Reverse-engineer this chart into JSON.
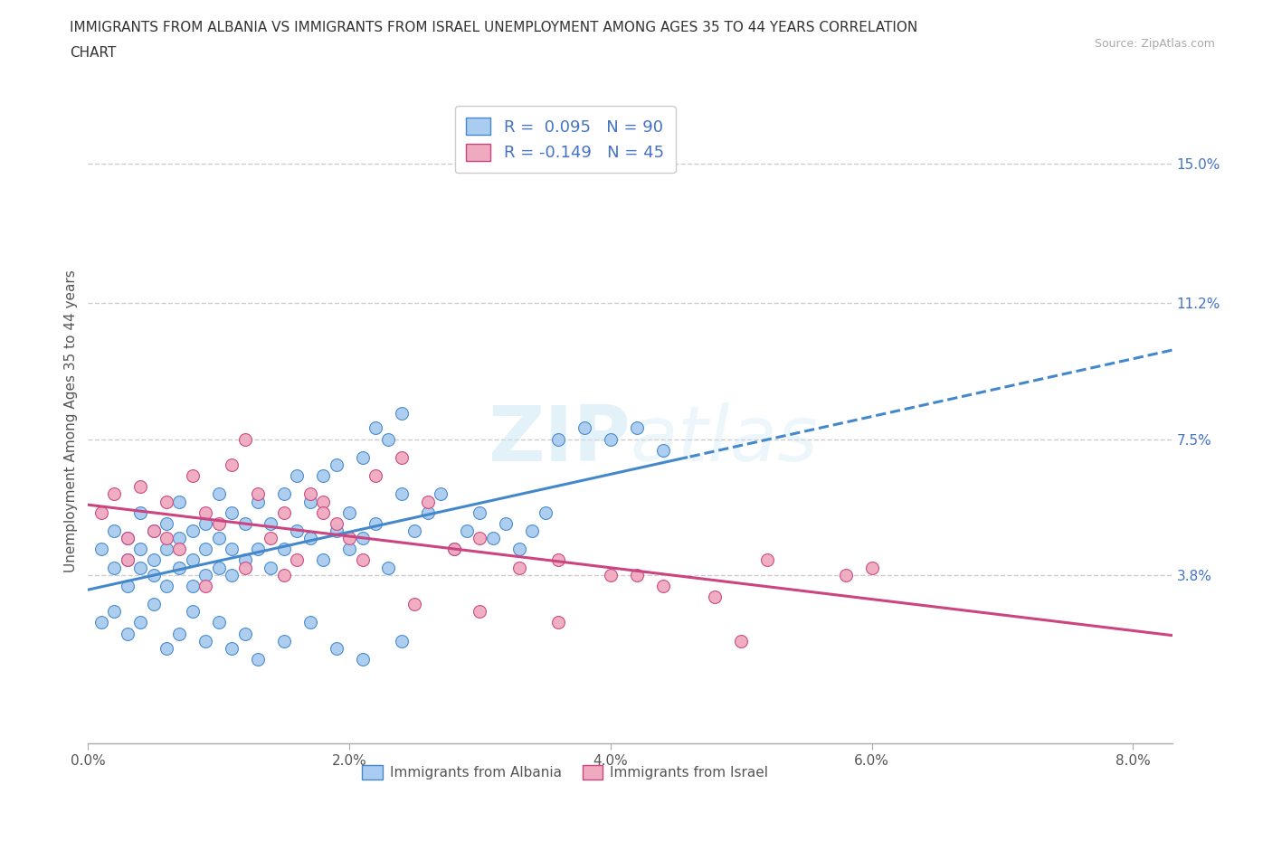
{
  "title_line1": "IMMIGRANTS FROM ALBANIA VS IMMIGRANTS FROM ISRAEL UNEMPLOYMENT AMONG AGES 35 TO 44 YEARS CORRELATION",
  "title_line2": "CHART",
  "source": "Source: ZipAtlas.com",
  "ylabel": "Unemployment Among Ages 35 to 44 years",
  "xlim_min": 0.0,
  "xlim_max": 0.083,
  "ylim_min": -0.008,
  "ylim_max": 0.168,
  "xtick_labels": [
    "0.0%",
    "2.0%",
    "4.0%",
    "6.0%",
    "8.0%"
  ],
  "xtick_values": [
    0.0,
    0.02,
    0.04,
    0.06,
    0.08
  ],
  "ytick_labels_right": [
    "3.8%",
    "7.5%",
    "11.2%",
    "15.0%"
  ],
  "ytick_values_right": [
    0.038,
    0.075,
    0.112,
    0.15
  ],
  "albania_color": "#aaccf0",
  "israel_color": "#f0aac0",
  "albania_edge_color": "#4488cc",
  "israel_edge_color": "#cc4480",
  "albania_trend_color": "#4488cc",
  "israel_trend_color": "#cc4480",
  "legend_label_albania": "Immigrants from Albania",
  "legend_label_israel": "Immigrants from Israel",
  "albania_R": 0.095,
  "albania_N": 90,
  "israel_R": -0.149,
  "israel_N": 45,
  "albania_x": [
    0.001,
    0.002,
    0.002,
    0.003,
    0.003,
    0.003,
    0.004,
    0.004,
    0.004,
    0.005,
    0.005,
    0.005,
    0.006,
    0.006,
    0.006,
    0.007,
    0.007,
    0.007,
    0.008,
    0.008,
    0.008,
    0.009,
    0.009,
    0.009,
    0.01,
    0.01,
    0.01,
    0.011,
    0.011,
    0.011,
    0.012,
    0.012,
    0.013,
    0.013,
    0.014,
    0.014,
    0.015,
    0.015,
    0.016,
    0.016,
    0.017,
    0.017,
    0.018,
    0.018,
    0.019,
    0.019,
    0.02,
    0.02,
    0.021,
    0.021,
    0.022,
    0.022,
    0.023,
    0.023,
    0.024,
    0.024,
    0.025,
    0.026,
    0.027,
    0.028,
    0.029,
    0.03,
    0.031,
    0.032,
    0.033,
    0.034,
    0.035,
    0.036,
    0.038,
    0.04,
    0.042,
    0.044,
    0.001,
    0.002,
    0.003,
    0.004,
    0.005,
    0.006,
    0.007,
    0.008,
    0.009,
    0.01,
    0.011,
    0.012,
    0.013,
    0.015,
    0.017,
    0.019,
    0.021,
    0.024
  ],
  "albania_y": [
    0.045,
    0.05,
    0.04,
    0.042,
    0.048,
    0.035,
    0.04,
    0.045,
    0.055,
    0.042,
    0.05,
    0.038,
    0.045,
    0.052,
    0.035,
    0.04,
    0.048,
    0.058,
    0.042,
    0.05,
    0.035,
    0.045,
    0.052,
    0.038,
    0.04,
    0.048,
    0.06,
    0.045,
    0.055,
    0.038,
    0.042,
    0.052,
    0.045,
    0.058,
    0.04,
    0.052,
    0.045,
    0.06,
    0.05,
    0.065,
    0.048,
    0.058,
    0.042,
    0.065,
    0.05,
    0.068,
    0.045,
    0.055,
    0.07,
    0.048,
    0.078,
    0.052,
    0.075,
    0.04,
    0.06,
    0.082,
    0.05,
    0.055,
    0.06,
    0.045,
    0.05,
    0.055,
    0.048,
    0.052,
    0.045,
    0.05,
    0.055,
    0.075,
    0.078,
    0.075,
    0.078,
    0.072,
    0.025,
    0.028,
    0.022,
    0.025,
    0.03,
    0.018,
    0.022,
    0.028,
    0.02,
    0.025,
    0.018,
    0.022,
    0.015,
    0.02,
    0.025,
    0.018,
    0.015,
    0.02
  ],
  "israel_x": [
    0.001,
    0.002,
    0.003,
    0.004,
    0.005,
    0.006,
    0.007,
    0.008,
    0.009,
    0.01,
    0.011,
    0.012,
    0.013,
    0.014,
    0.015,
    0.016,
    0.017,
    0.018,
    0.019,
    0.02,
    0.022,
    0.024,
    0.026,
    0.028,
    0.03,
    0.033,
    0.036,
    0.04,
    0.044,
    0.048,
    0.052,
    0.058,
    0.003,
    0.006,
    0.009,
    0.012,
    0.015,
    0.018,
    0.021,
    0.025,
    0.03,
    0.036,
    0.042,
    0.05,
    0.06
  ],
  "israel_y": [
    0.055,
    0.06,
    0.048,
    0.062,
    0.05,
    0.058,
    0.045,
    0.065,
    0.055,
    0.052,
    0.068,
    0.075,
    0.06,
    0.048,
    0.055,
    0.042,
    0.06,
    0.058,
    0.052,
    0.048,
    0.065,
    0.07,
    0.058,
    0.045,
    0.048,
    0.04,
    0.042,
    0.038,
    0.035,
    0.032,
    0.042,
    0.038,
    0.042,
    0.048,
    0.035,
    0.04,
    0.038,
    0.055,
    0.042,
    0.03,
    0.028,
    0.025,
    0.038,
    0.02,
    0.04
  ]
}
